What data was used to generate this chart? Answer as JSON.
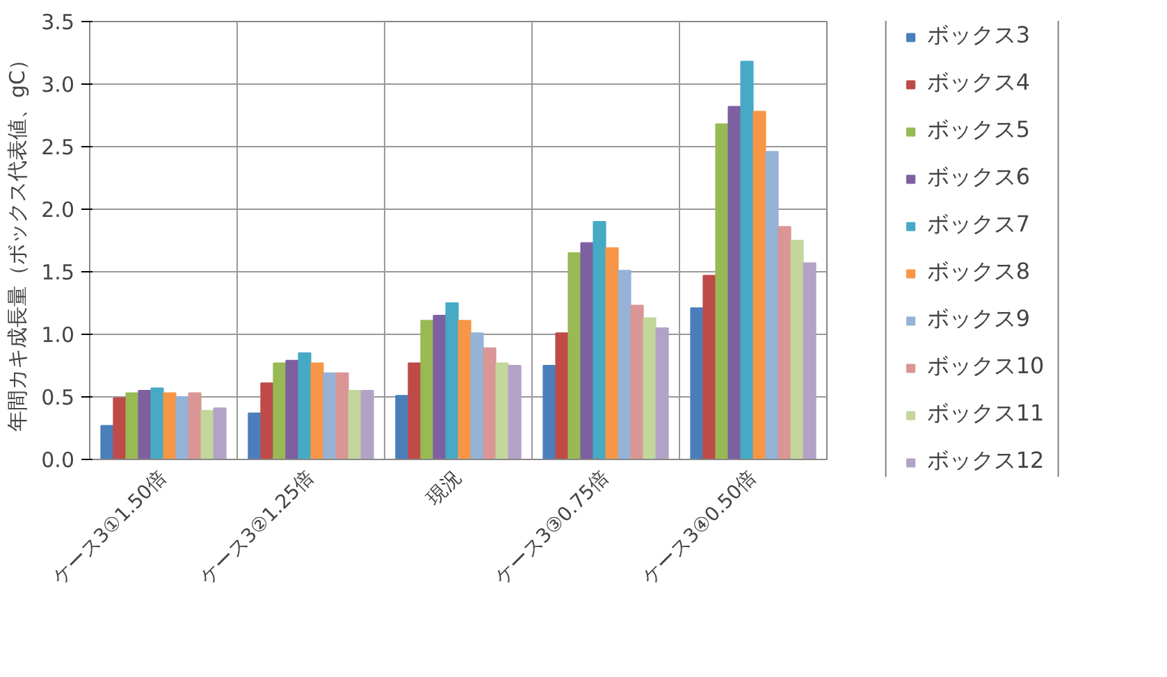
{
  "chart_data": {
    "type": "bar",
    "ylabel": "年間カキ成長量（ボックス代表値、gC）",
    "categories": [
      "ケース3①1.50倍",
      "ケース3②1.25倍",
      "現況",
      "ケース3③0.75倍",
      "ケース3④0.50倍"
    ],
    "series": [
      {
        "name": "ボックス3",
        "color": "#4a7ebb",
        "values": [
          0.27,
          0.37,
          0.51,
          0.75,
          1.21
        ]
      },
      {
        "name": "ボックス4",
        "color": "#be4b48",
        "values": [
          0.49,
          0.61,
          0.77,
          1.01,
          1.47
        ]
      },
      {
        "name": "ボックス5",
        "color": "#98b954",
        "values": [
          0.53,
          0.77,
          1.11,
          1.65,
          2.68
        ]
      },
      {
        "name": "ボックス6",
        "color": "#7d60a0",
        "values": [
          0.55,
          0.79,
          1.15,
          1.73,
          2.82
        ]
      },
      {
        "name": "ボックス7",
        "color": "#46aac5",
        "values": [
          0.57,
          0.85,
          1.25,
          1.9,
          3.18
        ]
      },
      {
        "name": "ボックス8",
        "color": "#f79646",
        "values": [
          0.53,
          0.77,
          1.11,
          1.69,
          2.78
        ]
      },
      {
        "name": "ボックス9",
        "color": "#95b3d7",
        "values": [
          0.5,
          0.69,
          1.01,
          1.51,
          2.46
        ]
      },
      {
        "name": "ボックス10",
        "color": "#d99694",
        "values": [
          0.53,
          0.69,
          0.89,
          1.23,
          1.86
        ]
      },
      {
        "name": "ボックス11",
        "color": "#c3d69b",
        "values": [
          0.39,
          0.55,
          0.77,
          1.13,
          1.75
        ]
      },
      {
        "name": "ボックス12",
        "color": "#b3a2c7",
        "values": [
          0.41,
          0.55,
          0.75,
          1.05,
          1.57
        ]
      }
    ],
    "ylim": [
      0,
      3.5
    ],
    "yticks": [
      {
        "value": 0,
        "label": "0.0"
      },
      0.5,
      {
        "value": 1,
        "label": "1.0"
      },
      1.5,
      {
        "value": 2,
        "label": "2.0"
      },
      2.5,
      {
        "value": 3,
        "label": "3.0"
      },
      3.5
    ],
    "grid": true,
    "legend": "right"
  }
}
